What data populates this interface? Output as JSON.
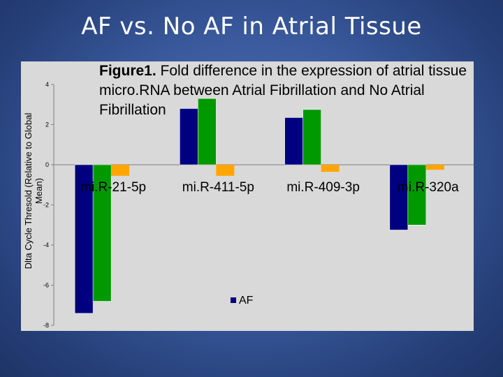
{
  "slide": {
    "title": "AF vs. No AF in Atrial Tissue"
  },
  "caption": {
    "figure_number": "Figure1.",
    "text": "Fold difference in the expression of atrial tissue micro.RNA between Atrial Fibrillation and No Atrial Fibrillation"
  },
  "chart_data": {
    "type": "bar",
    "ylabel": "Dlta Cycle Thresold (Relative to Global Mean)",
    "ylabel_lines": [
      "Dlta Cycle Thresold (Relative to Global",
      "Mean)"
    ],
    "ylim": [
      -8,
      4
    ],
    "yticks": [
      4,
      2,
      0,
      -2,
      -4,
      -6,
      -8
    ],
    "categories": [
      "mi.R-21-5p",
      "mi.R-411-5p",
      "mi.R-409-3p",
      "mi.R-320a"
    ],
    "series": [
      {
        "name": "AF",
        "color": "#000080",
        "values": [
          -7.4,
          2.8,
          2.35,
          -3.25
        ]
      },
      {
        "name": "",
        "color": "#009900",
        "values": [
          -6.8,
          3.3,
          2.75,
          -3.0
        ]
      },
      {
        "name": "",
        "color": "#ffa500",
        "values": [
          -0.55,
          -0.55,
          -0.35,
          -0.25
        ]
      }
    ],
    "legend": {
      "position": "bottom",
      "entries": [
        "AF"
      ]
    },
    "grid": false
  }
}
